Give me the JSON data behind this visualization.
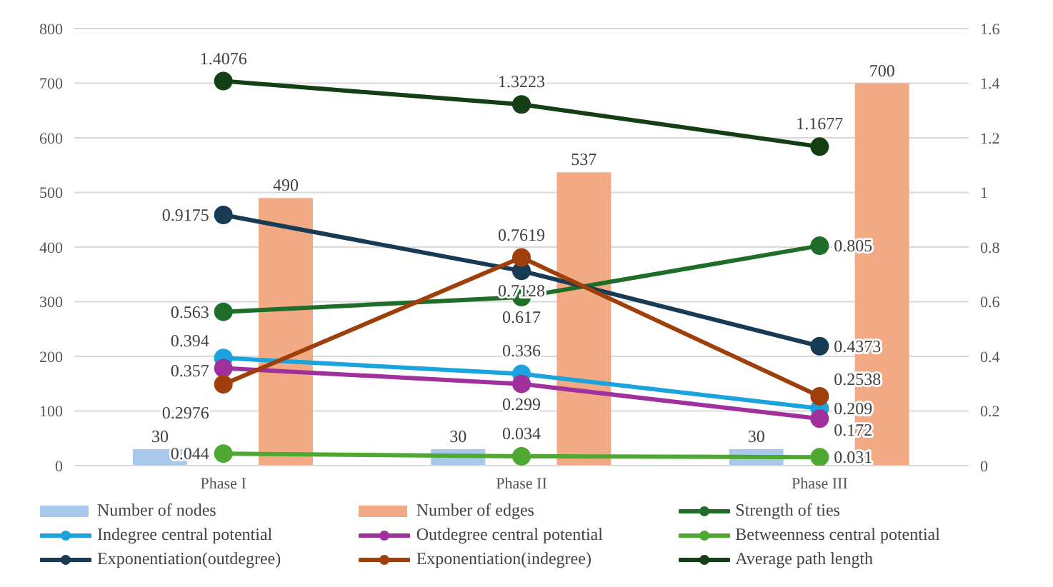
{
  "chart_data": {
    "type": "bar",
    "categories": [
      "Phase I",
      "Phase II",
      "Phase III"
    ],
    "series": [
      {
        "name": "Number of nodes",
        "color": "#a9c9ec",
        "values": [
          30,
          30,
          30
        ]
      },
      {
        "name": "Number of edges",
        "color": "#f2aa84",
        "values": [
          490,
          537,
          700
        ]
      },
      {
        "name": "Strength of ties",
        "type": "line",
        "axis": "y2",
        "color": "#1e6e2a",
        "values": [
          0.563,
          0.617,
          0.805
        ]
      },
      {
        "name": "Indegree central potential",
        "type": "line",
        "axis": "y2",
        "color": "#1aa3dd",
        "values": [
          0.394,
          0.336,
          0.209
        ]
      },
      {
        "name": "Outdegree central potential",
        "type": "line",
        "axis": "y2",
        "color": "#a0309b",
        "values": [
          0.357,
          0.299,
          0.172
        ]
      },
      {
        "name": "Betweenness central potential",
        "type": "line",
        "axis": "y2",
        "color": "#4fa832",
        "values": [
          0.044,
          0.034,
          0.031
        ]
      },
      {
        "name": "Exponentiation(outdegree)",
        "type": "line",
        "axis": "y2",
        "color": "#173a55",
        "values": [
          0.9175,
          0.7128,
          0.4373
        ]
      },
      {
        "name": "Exponentiation(indegree)",
        "type": "line",
        "axis": "y2",
        "color": "#9e3f0c",
        "values": [
          0.2976,
          0.7619,
          0.2538
        ]
      },
      {
        "name": "Average path length",
        "type": "line",
        "axis": "y2",
        "color": "#143f14",
        "values": [
          1.4076,
          1.3223,
          1.1677
        ]
      }
    ],
    "ylim": [
      0,
      800
    ],
    "yticks": [
      0,
      100,
      200,
      300,
      400,
      500,
      600,
      700,
      800
    ],
    "y2lim": [
      0,
      1.6
    ],
    "y2ticks": [
      0,
      0.2,
      0.4,
      0.6,
      0.8,
      1,
      1.2,
      1.4,
      1.6
    ],
    "grid": "y",
    "legend": "bottom",
    "marker": "circle",
    "line_style": "solid",
    "data_labels": true
  }
}
